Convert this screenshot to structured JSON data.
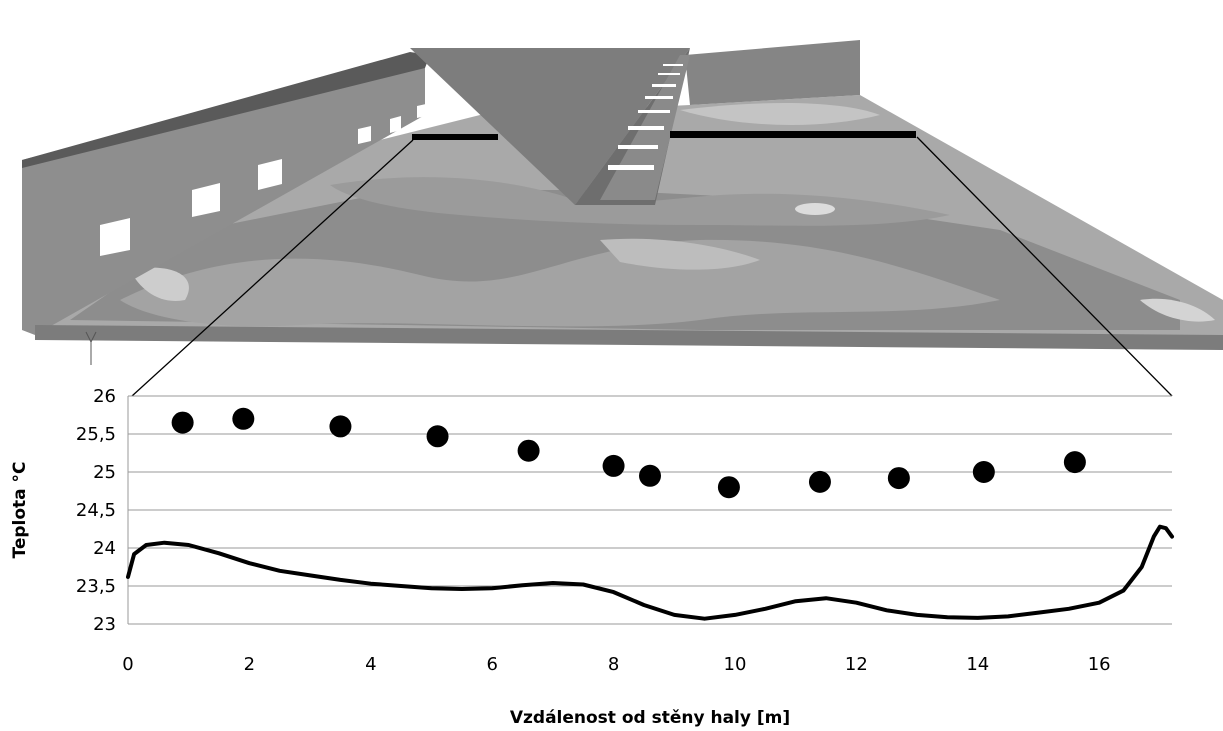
{
  "colors": {
    "marker": "#000000",
    "line": "#000000",
    "grid": "#9a9a9a",
    "floor_light": "#cfcfcf",
    "floor_mid": "#a6a6a6",
    "floor_dark": "#858585",
    "wall": "#8c8c8c",
    "roof": "#7a7a7a"
  },
  "chart_data": {
    "type": "scatter",
    "title": "",
    "xlabel": "Vzdálenost od stěny haly [m]",
    "ylabel": "Teplota °C",
    "xlim": [
      0,
      17.2
    ],
    "ylim": [
      23,
      26
    ],
    "x_ticks": [
      0,
      2,
      4,
      6,
      8,
      10,
      12,
      14,
      16
    ],
    "y_ticks": [
      23,
      23.5,
      24,
      24.5,
      25,
      25.5,
      26
    ],
    "x_tick_labels": [
      "0",
      "2",
      "4",
      "6",
      "8",
      "10",
      "12",
      "14",
      "16"
    ],
    "y_tick_labels": [
      "23",
      "23,5",
      "24",
      "24,5",
      "25",
      "25,5",
      "26"
    ],
    "grid": "horizontal",
    "legend": "none",
    "series": [
      {
        "kind": "scatter",
        "x": [
          0.9,
          1.9,
          3.5,
          5.1,
          6.6,
          8.0,
          8.6,
          9.9,
          11.4,
          12.7,
          14.1,
          15.6
        ],
        "y": [
          25.65,
          25.7,
          25.6,
          25.47,
          25.28,
          25.08,
          24.95,
          24.8,
          24.87,
          24.92,
          25.0,
          25.13
        ]
      },
      {
        "kind": "line",
        "x": [
          0,
          0.1,
          0.3,
          0.6,
          1.0,
          1.5,
          2.0,
          2.5,
          3.0,
          3.5,
          4.0,
          4.5,
          5.0,
          5.5,
          6.0,
          6.5,
          7.0,
          7.5,
          8.0,
          8.5,
          9.0,
          9.5,
          10.0,
          10.5,
          11.0,
          11.5,
          12.0,
          12.5,
          13.0,
          13.5,
          14.0,
          14.5,
          15.0,
          15.5,
          16.0,
          16.4,
          16.7,
          16.9,
          17.0,
          17.1,
          17.2
        ],
        "y": [
          23.62,
          23.92,
          24.04,
          24.07,
          24.04,
          23.93,
          23.8,
          23.7,
          23.64,
          23.58,
          23.53,
          23.5,
          23.47,
          23.46,
          23.47,
          23.51,
          23.54,
          23.52,
          23.42,
          23.25,
          23.12,
          23.07,
          23.12,
          23.2,
          23.3,
          23.34,
          23.28,
          23.18,
          23.12,
          23.09,
          23.08,
          23.1,
          23.15,
          23.2,
          23.28,
          23.44,
          23.75,
          24.15,
          24.28,
          24.26,
          24.15
        ]
      }
    ]
  }
}
